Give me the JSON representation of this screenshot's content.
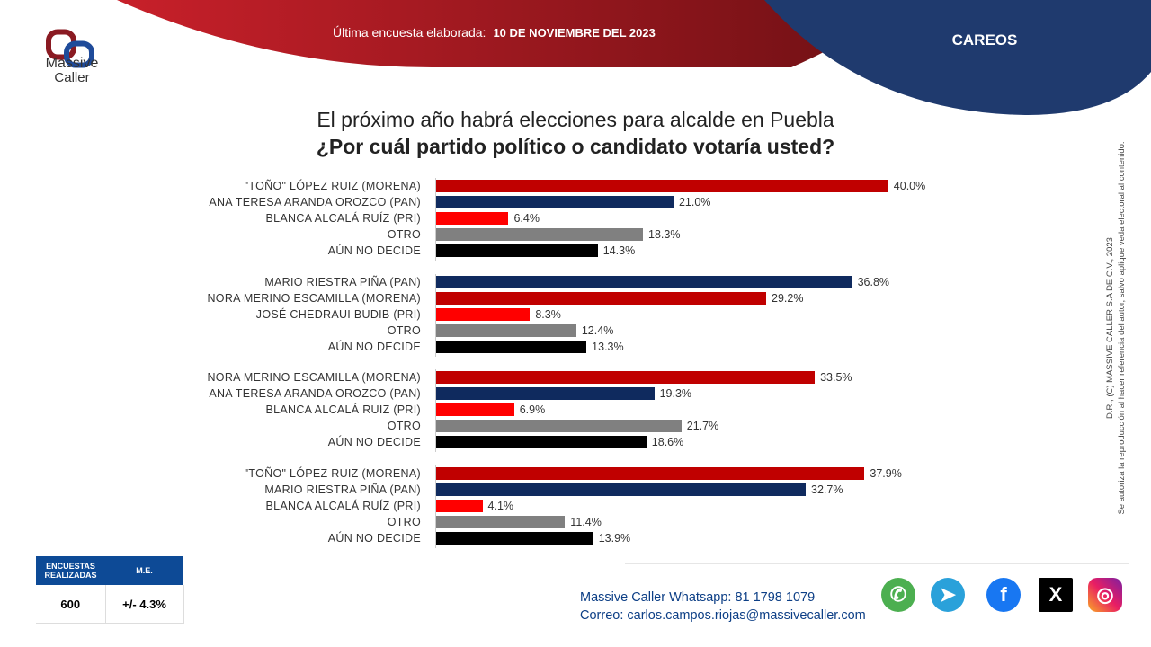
{
  "header": {
    "survey_label": "Última encuesta elaborada:",
    "survey_date": "10 DE NOVIEMBRE DEL 2023",
    "section": "CAREOS"
  },
  "logo": {
    "line1": "Massive",
    "line2": "Caller"
  },
  "colors": {
    "MORENA": "#c00000",
    "PAN": "#0f2a5e",
    "PRI": "#ff0000",
    "OTRO": "#808080",
    "NO_DECIDE": "#000000",
    "brand_blue": "#0d4a96"
  },
  "copyright": {
    "line1": "D.R., (C) MASSIVE CALLER S.A DE C.V., 2023",
    "line2": "Se autoriza la reproducción al hacer referencia del autor, salvo aplique veda electoral al contenido."
  },
  "stats": {
    "h1": "ENCUESTAS REALIZADAS",
    "h2": "M.E.",
    "v1": "600",
    "v2": "+/- 4.3%"
  },
  "contact": {
    "wa_label": "Massive Caller Whatsapp:",
    "wa": "81 1798 1079",
    "mail_label": "Correo:",
    "mail": "carlos.campos.riojas@massivecaller.com"
  },
  "social": [
    "whatsapp-icon",
    "telegram-icon",
    "facebook-icon",
    "x-icon",
    "instagram-icon"
  ],
  "chart_data": {
    "type": "bar",
    "orientation": "horizontal",
    "title": "El próximo año habrá elecciones para alcalde en Puebla",
    "subtitle": "¿Por cuál partido político o candidato votaría usted?",
    "unit": "%",
    "groups": [
      {
        "bars": [
          {
            "label": "\"TOÑO\" LÓPEZ RUIZ (MORENA)",
            "value": 40.0,
            "party": "MORENA"
          },
          {
            "label": "ANA TERESA ARANDA OROZCO (PAN)",
            "value": 21.0,
            "party": "PAN"
          },
          {
            "label": "BLANCA ALCALÁ RUÍZ (PRI)",
            "value": 6.4,
            "party": "PRI"
          },
          {
            "label": "OTRO",
            "value": 18.3,
            "party": "OTRO"
          },
          {
            "label": "AÚN NO DECIDE",
            "value": 14.3,
            "party": "NO_DECIDE"
          }
        ]
      },
      {
        "bars": [
          {
            "label": "MARIO RIESTRA PIÑA (PAN)",
            "value": 36.8,
            "party": "PAN"
          },
          {
            "label": "NORA MERINO ESCAMILLA (MORENA)",
            "value": 29.2,
            "party": "MORENA"
          },
          {
            "label": "JOSÉ CHEDRAUI BUDIB (PRI)",
            "value": 8.3,
            "party": "PRI"
          },
          {
            "label": "OTRO",
            "value": 12.4,
            "party": "OTRO"
          },
          {
            "label": "AÚN NO DECIDE",
            "value": 13.3,
            "party": "NO_DECIDE"
          }
        ]
      },
      {
        "bars": [
          {
            "label": "NORA MERINO ESCAMILLA (MORENA)",
            "value": 33.5,
            "party": "MORENA"
          },
          {
            "label": "ANA TERESA ARANDA OROZCO (PAN)",
            "value": 19.3,
            "party": "PAN"
          },
          {
            "label": "BLANCA ALCALÁ RUIZ (PRI)",
            "value": 6.9,
            "party": "PRI"
          },
          {
            "label": "OTRO",
            "value": 21.7,
            "party": "OTRO"
          },
          {
            "label": "AÚN NO DECIDE",
            "value": 18.6,
            "party": "NO_DECIDE"
          }
        ]
      },
      {
        "bars": [
          {
            "label": "\"TOÑO\" LÓPEZ RUIZ (MORENA)",
            "value": 37.9,
            "party": "MORENA"
          },
          {
            "label": "MARIO RIESTRA PIÑA (PAN)",
            "value": 32.7,
            "party": "PAN"
          },
          {
            "label": "BLANCA ALCALÁ RUÍZ (PRI)",
            "value": 4.1,
            "party": "PRI"
          },
          {
            "label": "OTRO",
            "value": 11.4,
            "party": "OTRO"
          },
          {
            "label": "AÚN NO DECIDE",
            "value": 13.9,
            "party": "NO_DECIDE"
          }
        ]
      }
    ]
  }
}
